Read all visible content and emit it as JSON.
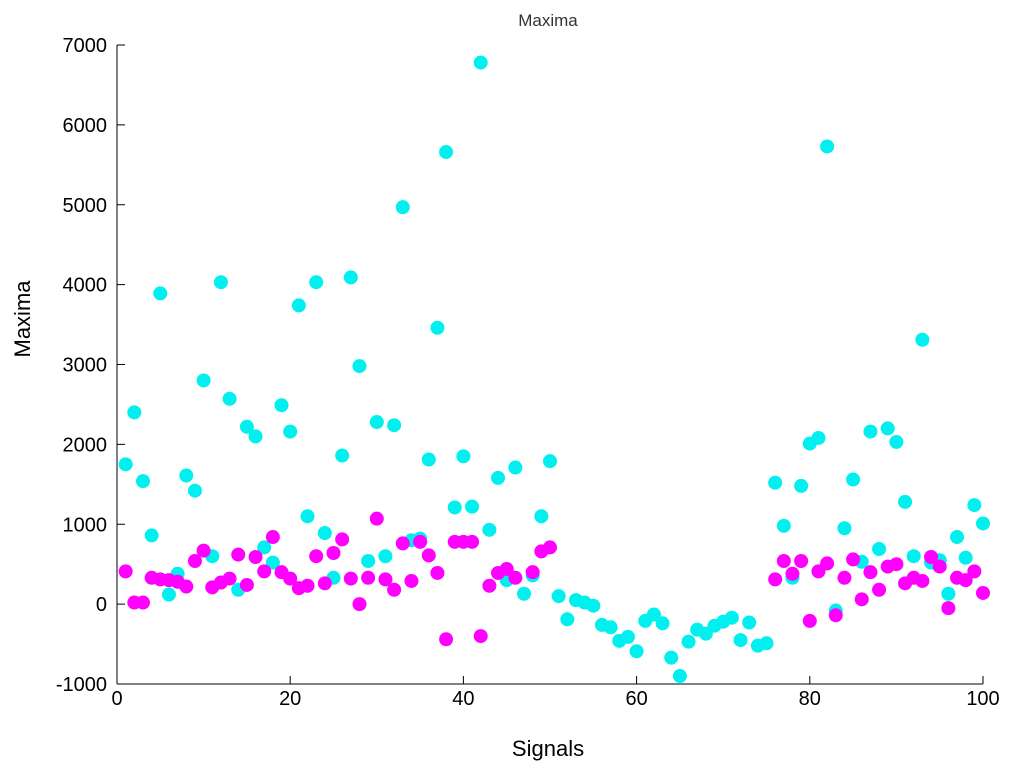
{
  "chart_data": {
    "type": "scatter",
    "title": "Maxima",
    "xlabel": "Signals",
    "ylabel": "Maxima",
    "xlim": [
      0,
      100
    ],
    "ylim": [
      -1000,
      7000
    ],
    "x_ticks": [
      "0",
      "20",
      "40",
      "60",
      "80",
      "100"
    ],
    "y_ticks": [
      "-1000",
      "0",
      "1000",
      "2000",
      "3000",
      "4000",
      "5000",
      "6000",
      "7000"
    ],
    "grid": false,
    "series": [
      {
        "color": "#00f0f0",
        "points": [
          [
            1,
            1750
          ],
          [
            2,
            2400
          ],
          [
            3,
            1540
          ],
          [
            4,
            860
          ],
          [
            5,
            3890
          ],
          [
            6,
            120
          ],
          [
            7,
            380
          ],
          [
            8,
            1610
          ],
          [
            9,
            1420
          ],
          [
            10,
            2800
          ],
          [
            11,
            600
          ],
          [
            12,
            4030
          ],
          [
            13,
            2570
          ],
          [
            14,
            180
          ],
          [
            15,
            2220
          ],
          [
            16,
            2100
          ],
          [
            17,
            710
          ],
          [
            18,
            520
          ],
          [
            19,
            2490
          ],
          [
            20,
            2160
          ],
          [
            21,
            3740
          ],
          [
            22,
            1100
          ],
          [
            23,
            4030
          ],
          [
            24,
            890
          ],
          [
            25,
            330
          ],
          [
            26,
            1860
          ],
          [
            27,
            4090
          ],
          [
            28,
            2980
          ],
          [
            29,
            540
          ],
          [
            30,
            2280
          ],
          [
            31,
            600
          ],
          [
            32,
            2240
          ],
          [
            33,
            4970
          ],
          [
            34,
            800
          ],
          [
            35,
            820
          ],
          [
            36,
            1810
          ],
          [
            37,
            3460
          ],
          [
            38,
            5660
          ],
          [
            39,
            1210
          ],
          [
            40,
            1850
          ],
          [
            41,
            1220
          ],
          [
            42,
            6780
          ],
          [
            43,
            930
          ],
          [
            44,
            1580
          ],
          [
            45,
            300
          ],
          [
            46,
            1710
          ],
          [
            47,
            130
          ],
          [
            48,
            360
          ],
          [
            49,
            1100
          ],
          [
            50,
            1790
          ],
          [
            51,
            100
          ],
          [
            52,
            -190
          ],
          [
            53,
            50
          ],
          [
            54,
            20
          ],
          [
            55,
            -20
          ],
          [
            56,
            -260
          ],
          [
            57,
            -290
          ],
          [
            58,
            -460
          ],
          [
            59,
            -410
          ],
          [
            60,
            -590
          ],
          [
            61,
            -210
          ],
          [
            62,
            -130
          ],
          [
            63,
            -240
          ],
          [
            64,
            -670
          ],
          [
            65,
            -900
          ],
          [
            66,
            -470
          ],
          [
            67,
            -320
          ],
          [
            68,
            -370
          ],
          [
            69,
            -270
          ],
          [
            70,
            -220
          ],
          [
            71,
            -170
          ],
          [
            72,
            -450
          ],
          [
            73,
            -230
          ],
          [
            74,
            -520
          ],
          [
            75,
            -490
          ],
          [
            76,
            1520
          ],
          [
            77,
            980
          ],
          [
            78,
            330
          ],
          [
            79,
            1480
          ],
          [
            80,
            2010
          ],
          [
            81,
            2080
          ],
          [
            82,
            5730
          ],
          [
            83,
            -80
          ],
          [
            84,
            950
          ],
          [
            85,
            1560
          ],
          [
            86,
            530
          ],
          [
            87,
            2160
          ],
          [
            88,
            690
          ],
          [
            89,
            2200
          ],
          [
            90,
            2030
          ],
          [
            91,
            1280
          ],
          [
            92,
            600
          ],
          [
            93,
            3310
          ],
          [
            94,
            520
          ],
          [
            95,
            550
          ],
          [
            96,
            130
          ],
          [
            97,
            840
          ],
          [
            98,
            580
          ],
          [
            99,
            1240
          ],
          [
            100,
            1010
          ]
        ]
      },
      {
        "color": "#ff00ff",
        "points": [
          [
            1,
            410
          ],
          [
            2,
            20
          ],
          [
            3,
            20
          ],
          [
            4,
            330
          ],
          [
            5,
            310
          ],
          [
            6,
            300
          ],
          [
            7,
            280
          ],
          [
            8,
            220
          ],
          [
            9,
            540
          ],
          [
            10,
            670
          ],
          [
            11,
            210
          ],
          [
            12,
            270
          ],
          [
            13,
            320
          ],
          [
            14,
            620
          ],
          [
            15,
            240
          ],
          [
            16,
            590
          ],
          [
            17,
            410
          ],
          [
            18,
            840
          ],
          [
            19,
            400
          ],
          [
            20,
            320
          ],
          [
            21,
            200
          ],
          [
            22,
            230
          ],
          [
            23,
            600
          ],
          [
            24,
            260
          ],
          [
            25,
            640
          ],
          [
            26,
            810
          ],
          [
            27,
            320
          ],
          [
            28,
            0
          ],
          [
            29,
            330
          ],
          [
            30,
            1070
          ],
          [
            31,
            310
          ],
          [
            32,
            180
          ],
          [
            33,
            760
          ],
          [
            34,
            290
          ],
          [
            35,
            780
          ],
          [
            36,
            610
          ],
          [
            37,
            390
          ],
          [
            38,
            -440
          ],
          [
            39,
            780
          ],
          [
            40,
            780
          ],
          [
            41,
            780
          ],
          [
            42,
            -400
          ],
          [
            43,
            230
          ],
          [
            44,
            390
          ],
          [
            45,
            440
          ],
          [
            46,
            330
          ],
          [
            48,
            400
          ],
          [
            49,
            660
          ],
          [
            50,
            710
          ],
          [
            76,
            310
          ],
          [
            77,
            540
          ],
          [
            78,
            380
          ],
          [
            79,
            540
          ],
          [
            80,
            -210
          ],
          [
            81,
            410
          ],
          [
            82,
            510
          ],
          [
            83,
            -140
          ],
          [
            84,
            330
          ],
          [
            85,
            560
          ],
          [
            86,
            60
          ],
          [
            87,
            400
          ],
          [
            88,
            180
          ],
          [
            89,
            470
          ],
          [
            90,
            500
          ],
          [
            91,
            260
          ],
          [
            92,
            330
          ],
          [
            93,
            290
          ],
          [
            94,
            590
          ],
          [
            95,
            470
          ],
          [
            96,
            -50
          ],
          [
            97,
            330
          ],
          [
            98,
            300
          ],
          [
            99,
            410
          ],
          [
            100,
            140
          ]
        ]
      }
    ]
  }
}
